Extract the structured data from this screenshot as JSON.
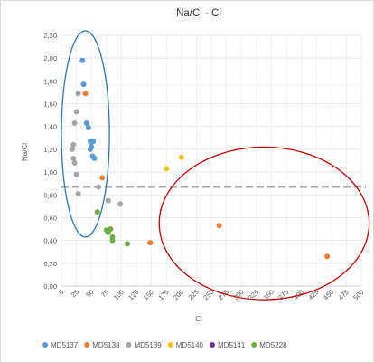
{
  "chart_data": {
    "type": "scatter",
    "title": "Na/Cl - Cl",
    "xlabel": "Cl",
    "ylabel": "Na/Cl",
    "xlim": [
      0,
      500
    ],
    "ylim": [
      0,
      2.2
    ],
    "x_ticks": [
      "0",
      "25",
      "50",
      "75",
      "100",
      "125",
      "150",
      "175",
      "200",
      "225",
      "250",
      "275",
      "300",
      "325",
      "350",
      "375",
      "400",
      "425",
      "450",
      "475",
      "500"
    ],
    "y_ticks": [
      "0,00",
      "0,20",
      "0,40",
      "0,60",
      "0,80",
      "1,00",
      "1,20",
      "1,40",
      "1,60",
      "1,80",
      "2,00",
      "2,20"
    ],
    "grid": true,
    "legend_position": "bottom",
    "reference_line": {
      "y": 0.87,
      "style": "dashed",
      "color": "#A6A6A6"
    },
    "series": [
      {
        "name": "MD5137",
        "color": "#5B9BD5",
        "points": [
          [
            35,
            1.98
          ],
          [
            37,
            1.77
          ],
          [
            42,
            1.43
          ],
          [
            45,
            1.39
          ],
          [
            48,
            1.27
          ],
          [
            50,
            1.26
          ],
          [
            50,
            1.22
          ],
          [
            53,
            1.27
          ],
          [
            52,
            1.14
          ],
          [
            55,
            1.12
          ],
          [
            48,
            1.2
          ]
        ]
      },
      {
        "name": "MD5138",
        "color": "#ED7D31",
        "points": [
          [
            40,
            1.69
          ],
          [
            68,
            0.95
          ],
          [
            148,
            0.38
          ],
          [
            263,
            0.53
          ],
          [
            443,
            0.26
          ]
        ]
      },
      {
        "name": "MD5139",
        "color": "#A5A5A5",
        "points": [
          [
            28,
            1.69
          ],
          [
            25,
            1.53
          ],
          [
            22,
            1.43
          ],
          [
            20,
            1.24
          ],
          [
            18,
            1.2
          ],
          [
            20,
            1.12
          ],
          [
            22,
            1.08
          ],
          [
            25,
            0.98
          ],
          [
            28,
            0.81
          ],
          [
            62,
            0.87
          ],
          [
            78,
            0.75
          ],
          [
            98,
            0.72
          ]
        ]
      },
      {
        "name": "MD5140",
        "color": "#FFC000",
        "points": [
          [
            175,
            1.03
          ],
          [
            200,
            1.13
          ]
        ]
      },
      {
        "name": "MD5141",
        "color": "#7030A0",
        "points": []
      },
      {
        "name": "MD5228",
        "color": "#70AD47",
        "points": [
          [
            60,
            0.65
          ],
          [
            75,
            0.49
          ],
          [
            78,
            0.47
          ],
          [
            82,
            0.5
          ],
          [
            85,
            0.43
          ],
          [
            85,
            0.4
          ],
          [
            110,
            0.37
          ]
        ]
      }
    ],
    "annotations": [
      {
        "shape": "ellipse",
        "color": "#2E75B6",
        "cx": 40,
        "cy": 1.335,
        "rx_data": 40,
        "ry_data": 0.905
      },
      {
        "shape": "ellipse",
        "color": "#C00000",
        "cx": 338,
        "cy": 0.55,
        "rx_data": 175,
        "ry_data": 0.67
      }
    ]
  }
}
